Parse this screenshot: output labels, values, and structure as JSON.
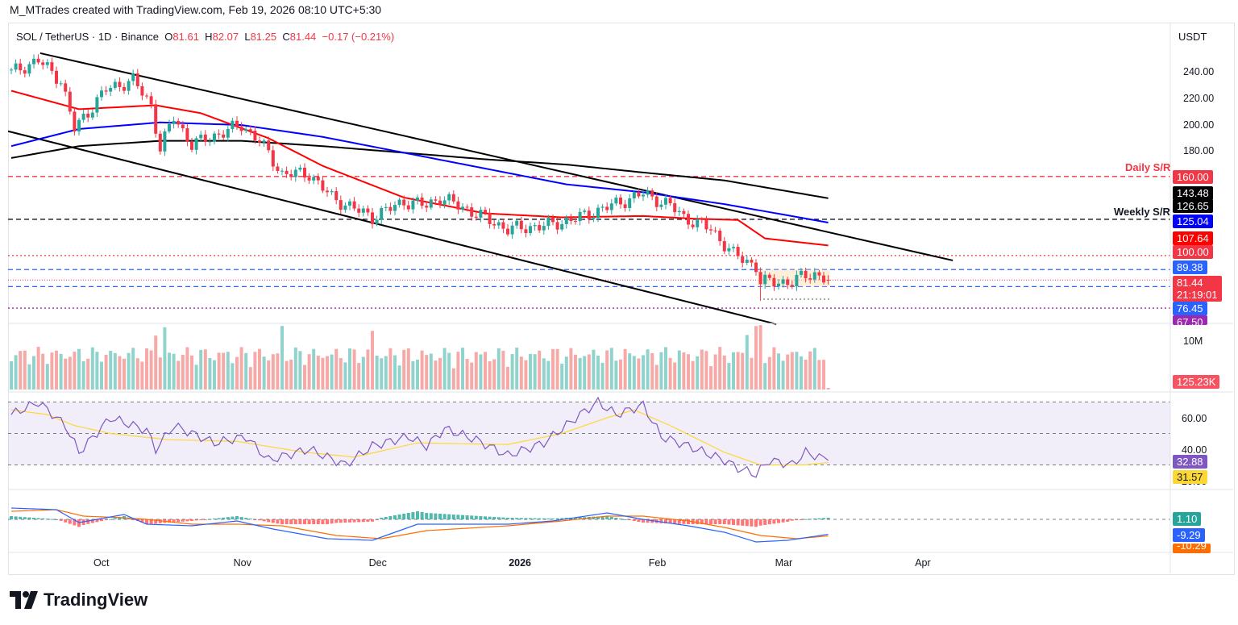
{
  "credit": "M_MTrades created with TradingView.com, Feb 19, 2026 08:10 UTC+5:30",
  "legend": {
    "symbol": "SOL / TetherUS · 1D · Binance",
    "o_label": "O",
    "o": "81.61",
    "h_label": "H",
    "h": "82.07",
    "l_label": "L",
    "l": "81.25",
    "c_label": "C",
    "c": "81.44",
    "change": "−0.17 (−0.21%)"
  },
  "currency": "USDT",
  "price_axis_ticks": [
    "240.00",
    "220.00",
    "200.00",
    "180.00"
  ],
  "time_axis": [
    {
      "label": "Oct",
      "day": 20
    },
    {
      "label": "Nov",
      "day": 51
    },
    {
      "label": "Dec",
      "day": 81
    },
    {
      "label": "2026",
      "day": 112
    },
    {
      "label": "Feb",
      "day": 143
    },
    {
      "label": "Mar",
      "day": 171
    },
    {
      "label": "Apr",
      "day": 202
    }
  ],
  "levels": [
    {
      "name": "Daily S/R",
      "price": 160,
      "color": "#f23645",
      "style": "dashed"
    },
    {
      "name": "Weekly S/R",
      "price": 127.5,
      "color": "#131722",
      "style": "dashed"
    },
    {
      "name": "",
      "price": 100,
      "color": "#f23645",
      "style": "dotted"
    },
    {
      "name": "",
      "price": 89.38,
      "color": "#2962ff",
      "style": "dashed"
    },
    {
      "name": "",
      "price": 76.45,
      "color": "#2962ff",
      "style": "dashed"
    },
    {
      "name": "",
      "price": 67.5,
      "color": "#9c27b0",
      "style": "dotted"
    }
  ],
  "price_tags": [
    {
      "text": "160.00",
      "color": "#f23645"
    },
    {
      "text": "143.48",
      "color": "#000000"
    },
    {
      "text": "126.65",
      "color": "#000000"
    },
    {
      "text": "125.04",
      "color": "#0000ff"
    },
    {
      "text": "107.64",
      "color": "#ff0000"
    },
    {
      "text": "100.00",
      "color": "#f23645"
    },
    {
      "text": "89.38",
      "color": "#2962ff"
    },
    {
      "text": "81.44",
      "color": "#f23645",
      "sub": "21:19:01"
    },
    {
      "text": "76.45",
      "color": "#2962ff"
    },
    {
      "text": "67.50",
      "color": "#9c27b0"
    }
  ],
  "volume": {
    "tick": "10M",
    "last": "125.23K",
    "last_color": "#f7525f"
  },
  "rsi": {
    "ticks": [
      "60.00",
      "40.00",
      "20.00"
    ],
    "rsi_value": "32.88",
    "ma_value": "31.57",
    "rsi_color": "#7e57c2",
    "ma_color": "#fdd835"
  },
  "macd": {
    "hist_value": "1.10",
    "macd_value": "-9.29",
    "signal_value": "-10.29",
    "hist_color": "#26a69a",
    "macd_color": "#2962ff",
    "signal_color": "#ff6d00"
  },
  "logo": "TradingView",
  "chart_data": {
    "type": "candlestick",
    "x_unit": "days since Sep 10, 2025",
    "close_anchors": [
      [
        0,
        239
      ],
      [
        6,
        248
      ],
      [
        11,
        233
      ],
      [
        14,
        196
      ],
      [
        21,
        226
      ],
      [
        27,
        233
      ],
      [
        31,
        214
      ],
      [
        33,
        181
      ],
      [
        36,
        205
      ],
      [
        40,
        184
      ],
      [
        51,
        199
      ],
      [
        55,
        187
      ],
      [
        60,
        162
      ],
      [
        66,
        162
      ],
      [
        71,
        144
      ],
      [
        80,
        129
      ],
      [
        87,
        141
      ],
      [
        92,
        138
      ],
      [
        95,
        144
      ],
      [
        101,
        135
      ],
      [
        110,
        120
      ],
      [
        119,
        123
      ],
      [
        126,
        129
      ],
      [
        133,
        138
      ],
      [
        140,
        147
      ],
      [
        146,
        138
      ],
      [
        149,
        129
      ],
      [
        155,
        120
      ],
      [
        160,
        101
      ],
      [
        165,
        92
      ],
      [
        166,
        80
      ],
      [
        173,
        80
      ],
      [
        176,
        85
      ],
      [
        178,
        86
      ],
      [
        181,
        81.44
      ]
    ],
    "ma50_red": [
      [
        0,
        225
      ],
      [
        15,
        211
      ],
      [
        32,
        214
      ],
      [
        42,
        208
      ],
      [
        57,
        189
      ],
      [
        69,
        168
      ],
      [
        87,
        144
      ],
      [
        105,
        132
      ],
      [
        122,
        129
      ],
      [
        140,
        130
      ],
      [
        151,
        128
      ],
      [
        161,
        127
      ],
      [
        167,
        113
      ],
      [
        181,
        107.64
      ]
    ],
    "ma100_blue": [
      [
        0,
        183
      ],
      [
        15,
        196
      ],
      [
        33,
        201
      ],
      [
        51,
        199
      ],
      [
        69,
        190
      ],
      [
        87,
        178
      ],
      [
        105,
        166
      ],
      [
        123,
        154
      ],
      [
        140,
        148
      ],
      [
        158,
        139
      ],
      [
        181,
        125.04
      ]
    ],
    "ma200_black": [
      [
        0,
        174
      ],
      [
        15,
        183
      ],
      [
        33,
        187
      ],
      [
        51,
        187
      ],
      [
        69,
        183
      ],
      [
        87,
        178
      ],
      [
        105,
        173
      ],
      [
        123,
        169
      ],
      [
        140,
        163
      ],
      [
        158,
        157
      ],
      [
        181,
        143.48
      ]
    ],
    "channel_upper": [
      [
        6.4,
        253.5
      ],
      [
        208.6,
        96.3
      ]
    ],
    "channel_lower": [
      [
        -0.7,
        194.3
      ],
      [
        169.5,
        48
      ]
    ],
    "rsi_anchors": [
      [
        0,
        62
      ],
      [
        6,
        70
      ],
      [
        12,
        55
      ],
      [
        15,
        38
      ],
      [
        22,
        60
      ],
      [
        30,
        52
      ],
      [
        32,
        40
      ],
      [
        36,
        55
      ],
      [
        45,
        44
      ],
      [
        52,
        48
      ],
      [
        57,
        33
      ],
      [
        66,
        40
      ],
      [
        74,
        30
      ],
      [
        80,
        42
      ],
      [
        88,
        48
      ],
      [
        92,
        42
      ],
      [
        96,
        53
      ],
      [
        103,
        46
      ],
      [
        110,
        36
      ],
      [
        118,
        44
      ],
      [
        126,
        62
      ],
      [
        130,
        70
      ],
      [
        134,
        62
      ],
      [
        140,
        68
      ],
      [
        144,
        48
      ],
      [
        150,
        42
      ],
      [
        158,
        33
      ],
      [
        161,
        28
      ],
      [
        165,
        24
      ],
      [
        168,
        33
      ],
      [
        173,
        30
      ],
      [
        176,
        38
      ],
      [
        181,
        32.88
      ]
    ],
    "rsi_ma_anchors": [
      [
        0,
        65
      ],
      [
        8,
        62
      ],
      [
        14,
        55
      ],
      [
        22,
        50
      ],
      [
        35,
        46
      ],
      [
        50,
        45
      ],
      [
        65,
        38
      ],
      [
        76,
        35
      ],
      [
        90,
        44
      ],
      [
        110,
        43
      ],
      [
        122,
        50
      ],
      [
        132,
        60
      ],
      [
        138,
        65
      ],
      [
        146,
        55
      ],
      [
        158,
        38
      ],
      [
        166,
        30
      ],
      [
        176,
        30
      ],
      [
        181,
        31.57
      ]
    ],
    "macd_anchors": [
      [
        0,
        7
      ],
      [
        10,
        6
      ],
      [
        15,
        -2
      ],
      [
        25,
        3
      ],
      [
        30,
        -3
      ],
      [
        40,
        -4
      ],
      [
        50,
        -1
      ],
      [
        58,
        -6
      ],
      [
        70,
        -12
      ],
      [
        80,
        -13
      ],
      [
        90,
        -3
      ],
      [
        110,
        -3
      ],
      [
        120,
        -1
      ],
      [
        132,
        4
      ],
      [
        140,
        0
      ],
      [
        150,
        -4
      ],
      [
        158,
        -8
      ],
      [
        165,
        -14
      ],
      [
        172,
        -13
      ],
      [
        181,
        -9.29
      ]
    ],
    "signal_anchors": [
      [
        0,
        5
      ],
      [
        10,
        6
      ],
      [
        16,
        2
      ],
      [
        25,
        1
      ],
      [
        30,
        0
      ],
      [
        40,
        -3
      ],
      [
        50,
        -3
      ],
      [
        60,
        -4
      ],
      [
        72,
        -10
      ],
      [
        82,
        -12
      ],
      [
        92,
        -7
      ],
      [
        110,
        -4
      ],
      [
        122,
        -1
      ],
      [
        132,
        2
      ],
      [
        140,
        2
      ],
      [
        150,
        -1
      ],
      [
        158,
        -5
      ],
      [
        166,
        -10
      ],
      [
        174,
        -12
      ],
      [
        181,
        -10.29
      ]
    ]
  }
}
